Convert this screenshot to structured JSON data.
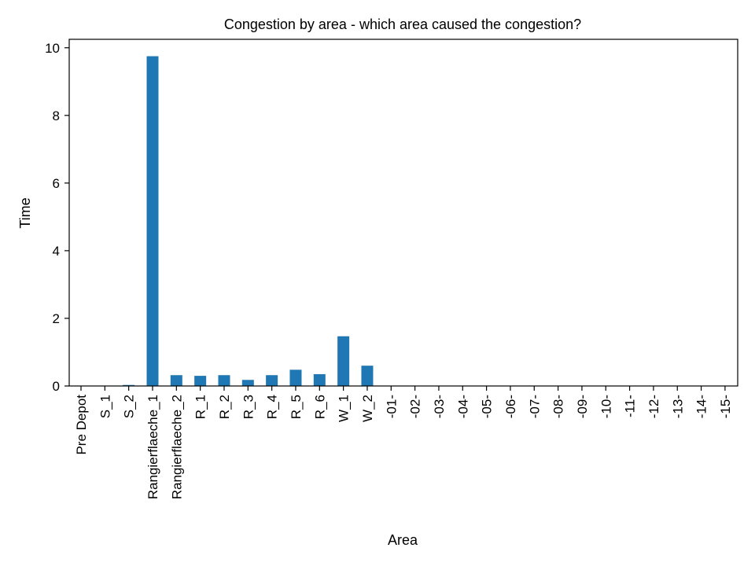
{
  "chart_data": {
    "type": "bar",
    "title": "Congestion by area - which area caused the congestion?",
    "xlabel": "Area",
    "ylabel": "Time",
    "ylim": [
      0,
      10.25
    ],
    "yticks": [
      0,
      2,
      4,
      6,
      8,
      10
    ],
    "ytick_labels": [
      "0",
      "2",
      "4",
      "6",
      "8",
      "10"
    ],
    "grid": false,
    "bar_color": "#1f77b4",
    "categories": [
      "Pre Depot",
      "S_1",
      "S_2",
      "Rangierflaeche_1",
      "Rangierflaeche_2",
      "R_1",
      "R_2",
      "R_3",
      "R_4",
      "R_5",
      "R_6",
      "W_1",
      "W_2",
      "-01-",
      "-02-",
      "-03-",
      "-04-",
      "-05-",
      "-06-",
      "-07-",
      "-08-",
      "-09-",
      "-10-",
      "-11-",
      "-12-",
      "-13-",
      "-14-",
      "-15-"
    ],
    "values": [
      0,
      0,
      0.03,
      9.75,
      0.32,
      0.3,
      0.32,
      0.18,
      0.32,
      0.48,
      0.35,
      1.47,
      0.6,
      0,
      0,
      0,
      0,
      0,
      0,
      0,
      0,
      0,
      0,
      0,
      0,
      0,
      0,
      0
    ]
  }
}
